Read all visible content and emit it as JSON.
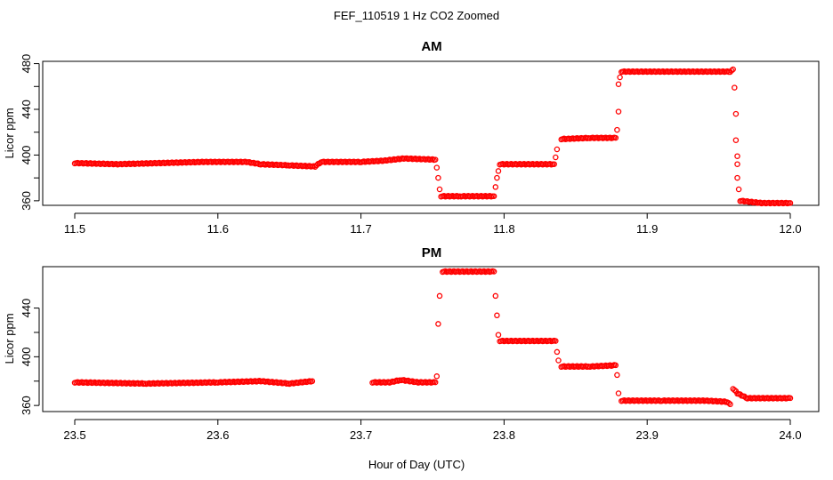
{
  "chart_data": [
    {
      "type": "scatter",
      "title": "AM",
      "ylabel": "Licor ppm",
      "xlim": [
        11.5,
        12.0
      ],
      "ylim": [
        356,
        482
      ],
      "xticks": [
        "11.5",
        "11.6",
        "11.7",
        "11.8",
        "11.9",
        "12.0"
      ],
      "yticks": [
        "360",
        "400",
        "440",
        "480"
      ],
      "marker": "open-circle",
      "color": "#ff0000",
      "series": [
        {
          "segments": [
            [
              [
                11.5,
                393
              ],
              [
                11.53,
                392
              ],
              [
                11.56,
                393
              ],
              [
                11.59,
                394
              ],
              [
                11.62,
                394
              ],
              [
                11.63,
                392
              ],
              [
                11.65,
                391
              ],
              [
                11.668,
                390
              ],
              [
                11.672,
                394
              ],
              [
                11.7,
                394
              ],
              [
                11.715,
                395
              ],
              [
                11.73,
                397
              ],
              [
                11.752,
                396
              ]
            ],
            [
              [
                11.756,
                364
              ],
              [
                11.77,
                364
              ],
              [
                11.793,
                364
              ]
            ],
            [
              [
                11.797,
                392
              ],
              [
                11.815,
                392
              ],
              [
                11.835,
                392
              ]
            ],
            [
              [
                11.84,
                414
              ],
              [
                11.86,
                415
              ],
              [
                11.878,
                415
              ]
            ],
            [
              [
                11.882,
                473
              ],
              [
                11.9,
                473
              ],
              [
                11.93,
                473
              ],
              [
                11.958,
                473
              ],
              [
                11.96,
                475
              ]
            ],
            [
              [
                11.965,
                360
              ],
              [
                11.98,
                358
              ],
              [
                12.0,
                358
              ]
            ]
          ],
          "transitions": [
            [
              11.753,
              389
            ],
            [
              11.754,
              380
            ],
            [
              11.755,
              370
            ],
            [
              11.794,
              372
            ],
            [
              11.795,
              380
            ],
            [
              11.796,
              386
            ],
            [
              11.836,
              398
            ],
            [
              11.837,
              405
            ],
            [
              11.879,
              422
            ],
            [
              11.88,
              438
            ],
            [
              11.88,
              462
            ],
            [
              11.881,
              468
            ],
            [
              11.961,
              459
            ],
            [
              11.962,
              436
            ],
            [
              11.962,
              413
            ],
            [
              11.963,
              399
            ],
            [
              11.963,
              392
            ],
            [
              11.963,
              380
            ],
            [
              11.964,
              370
            ]
          ]
        }
      ]
    },
    {
      "type": "scatter",
      "title": "PM",
      "ylabel": "Licor ppm",
      "xlabel": "Hour of Day (UTC)",
      "xlim": [
        23.5,
        24.0
      ],
      "ylim": [
        355,
        474
      ],
      "xticks": [
        "23.5",
        "23.6",
        "23.7",
        "23.8",
        "23.9",
        "24.0"
      ],
      "yticks": [
        "360",
        "400",
        "440"
      ],
      "marker": "open-circle",
      "color": "#ff0000",
      "series": [
        {
          "segments": [
            [
              [
                23.5,
                379
              ],
              [
                23.55,
                378
              ],
              [
                23.6,
                379
              ],
              [
                23.63,
                380
              ],
              [
                23.65,
                378
              ],
              [
                23.666,
                380
              ]
            ],
            [
              [
                23.708,
                379
              ],
              [
                23.72,
                379
              ],
              [
                23.728,
                381
              ],
              [
                23.74,
                379
              ],
              [
                23.752,
                379
              ]
            ],
            [
              [
                23.757,
                470
              ],
              [
                23.775,
                470
              ],
              [
                23.793,
                470
              ]
            ],
            [
              [
                23.797,
                413
              ],
              [
                23.815,
                413
              ],
              [
                23.836,
                413
              ]
            ],
            [
              [
                23.84,
                392
              ],
              [
                23.86,
                392
              ],
              [
                23.878,
                393
              ]
            ],
            [
              [
                23.882,
                364
              ],
              [
                23.91,
                364
              ],
              [
                23.94,
                364
              ],
              [
                23.956,
                363
              ],
              [
                23.958,
                361
              ]
            ],
            [
              [
                23.96,
                374
              ],
              [
                23.963,
                370
              ],
              [
                23.97,
                366
              ],
              [
                24.0,
                366
              ]
            ]
          ],
          "transitions": [
            [
              23.753,
              384
            ],
            [
              23.754,
              427
            ],
            [
              23.755,
              450
            ],
            [
              23.794,
              450
            ],
            [
              23.795,
              434
            ],
            [
              23.796,
              418
            ],
            [
              23.837,
              404
            ],
            [
              23.838,
              397
            ],
            [
              23.879,
              385
            ],
            [
              23.88,
              370
            ]
          ]
        }
      ]
    }
  ],
  "figure": {
    "suptitle": "FEF_110519  1 Hz CO2 Zoomed",
    "xlabel": "Hour of Day (UTC)"
  }
}
